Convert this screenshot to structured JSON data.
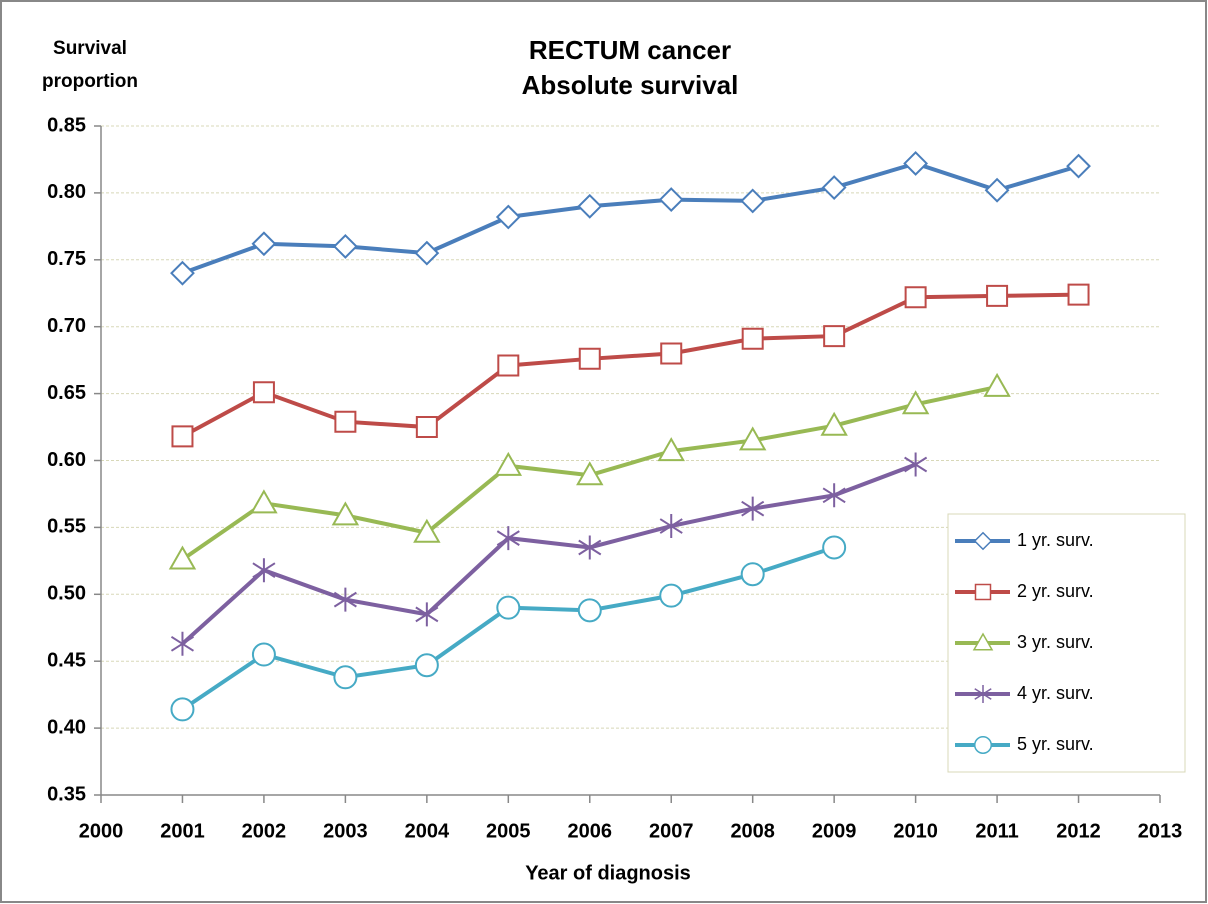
{
  "chart_data": {
    "type": "line",
    "title": [
      "RECTUM cancer",
      "Absolute survival"
    ],
    "ylabel": [
      "Survival",
      "proportion"
    ],
    "xlabel": "Year of diagnosis",
    "x": [
      2001,
      2002,
      2003,
      2004,
      2005,
      2006,
      2007,
      2008,
      2009,
      2010,
      2011,
      2012
    ],
    "series": [
      {
        "name": "1 yr. surv.",
        "color": "#4a7ebb",
        "marker": "diamond",
        "values": [
          0.74,
          0.762,
          0.76,
          0.755,
          0.782,
          0.79,
          0.795,
          0.794,
          0.804,
          0.822,
          0.802,
          0.82
        ]
      },
      {
        "name": "2 yr. surv.",
        "color": "#be4b48",
        "marker": "square",
        "values": [
          0.618,
          0.651,
          0.629,
          0.625,
          0.671,
          0.676,
          0.68,
          0.691,
          0.693,
          0.722,
          0.723,
          0.724
        ]
      },
      {
        "name": "3 yr. surv.",
        "color": "#98b954",
        "marker": "triangle",
        "values": [
          0.526,
          0.568,
          0.559,
          0.546,
          0.596,
          0.589,
          0.607,
          0.615,
          0.626,
          0.642,
          0.655,
          null
        ]
      },
      {
        "name": "4 yr. surv.",
        "color": "#7d60a0",
        "marker": "star",
        "values": [
          0.463,
          0.518,
          0.496,
          0.485,
          0.542,
          0.535,
          0.551,
          0.564,
          0.574,
          0.597,
          null,
          null
        ]
      },
      {
        "name": "5 yr. surv.",
        "color": "#46aac5",
        "marker": "circle",
        "values": [
          0.414,
          0.455,
          0.438,
          0.447,
          0.49,
          0.488,
          0.499,
          0.515,
          0.535,
          null,
          null,
          null
        ]
      }
    ],
    "xlim": [
      2000,
      2013
    ],
    "xticks": [
      2000,
      2001,
      2002,
      2003,
      2004,
      2005,
      2006,
      2007,
      2008,
      2009,
      2010,
      2011,
      2012,
      2013
    ],
    "ylim": [
      0.35,
      0.85
    ],
    "yticks": [
      0.35,
      {
        "value": 0.4,
        "label": "0.40"
      },
      0.45,
      {
        "value": 0.5,
        "label": "0.50"
      },
      0.55,
      {
        "value": 0.6,
        "label": "0.60"
      },
      0.65,
      {
        "value": 0.7,
        "label": "0.70"
      },
      0.75,
      {
        "value": 0.8,
        "label": "0.80"
      },
      0.85
    ],
    "grid": true,
    "legend": "right"
  }
}
